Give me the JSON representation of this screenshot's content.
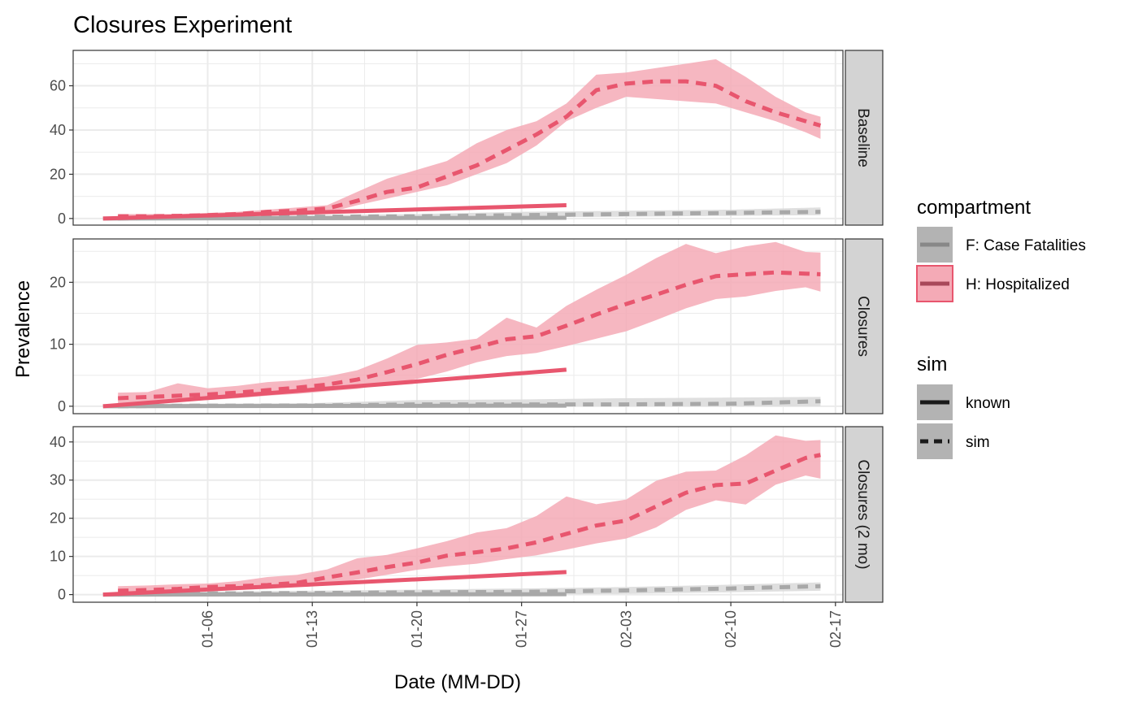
{
  "chart_data": {
    "type": "line",
    "title": "Closures Experiment",
    "xlabel": "Date (MM-DD)",
    "ylabel": "Prevalence",
    "x_ticks": [
      "01-06",
      "01-13",
      "01-20",
      "01-27",
      "02-03",
      "02-10",
      "02-17"
    ],
    "x_tick_days": [
      5,
      12,
      19,
      26,
      33,
      40,
      47
    ],
    "legend": {
      "placement": "right",
      "compartment_title": "compartment",
      "compartment_items": [
        {
          "label": "F: Case Fatalities",
          "color": "#9e9e9e"
        },
        {
          "label": "H: Hospitalized",
          "color": "#e8566e"
        }
      ],
      "sim_title": "sim",
      "sim_items": [
        {
          "label": "known",
          "linetype": "solid"
        },
        {
          "label": "sim",
          "linetype": "dashed"
        }
      ]
    },
    "colors": {
      "H": "#e8566e",
      "H_band": "#f4aab6",
      "F": "#a8a8a8",
      "F_band": "#d9d9d9",
      "strip": "#d3d3d3",
      "grid": "#ebebeb"
    },
    "panels": [
      {
        "strip": "Baseline",
        "ylim": [
          -3,
          76
        ],
        "y_ticks": [
          0,
          20,
          40,
          60
        ],
        "H_known": {
          "x": [
            -2,
            29
          ],
          "y": [
            0,
            6
          ]
        },
        "F_known": {
          "x": [
            -2,
            29
          ],
          "y": [
            0,
            0.3
          ]
        },
        "H_sim": {
          "x": [
            -1,
            1,
            3,
            5,
            7,
            9,
            11,
            13,
            15,
            17,
            19,
            21,
            23,
            25,
            27,
            29,
            31,
            33,
            35,
            37,
            39,
            41,
            43,
            45,
            46
          ],
          "y": [
            1,
            1,
            1.2,
            1.5,
            2,
            3,
            3.5,
            4.5,
            8,
            12,
            14,
            19,
            24,
            31,
            38,
            46,
            58,
            61,
            62,
            62,
            60,
            53,
            48,
            44,
            42
          ],
          "lo": [
            0,
            0,
            0.5,
            1,
            1,
            1.5,
            2,
            2.5,
            6,
            9,
            12,
            15,
            20,
            25,
            33,
            44,
            50,
            55,
            54,
            53,
            52,
            48,
            44,
            39,
            36
          ],
          "hi": [
            2,
            2,
            2,
            2.5,
            3,
            4,
            5,
            6,
            12,
            18,
            22,
            26,
            34,
            40,
            44,
            52,
            65,
            66,
            68,
            70,
            72,
            64,
            55,
            48,
            46
          ]
        },
        "F_sim": {
          "x": [
            -1,
            5,
            12,
            19,
            26,
            33,
            40,
            46
          ],
          "y": [
            0,
            0.5,
            0.8,
            1,
            1.5,
            2,
            2.5,
            3
          ],
          "lo": [
            0,
            0,
            0.2,
            0.4,
            0.6,
            0.8,
            1.2,
            1.5
          ],
          "hi": [
            0.5,
            1,
            1.5,
            2,
            3,
            3.5,
            4,
            5
          ]
        }
      },
      {
        "strip": "Closures",
        "ylim": [
          -1.2,
          27
        ],
        "y_ticks": [
          0,
          10,
          20
        ],
        "H_known": {
          "x": [
            -2,
            29
          ],
          "y": [
            0,
            5.9
          ]
        },
        "F_known": {
          "x": [
            -2,
            29
          ],
          "y": [
            0,
            0.1
          ]
        },
        "H_sim": {
          "x": [
            -1,
            1,
            3,
            5,
            7,
            9,
            11,
            13,
            15,
            17,
            19,
            21,
            23,
            25,
            27,
            29,
            31,
            33,
            35,
            37,
            39,
            41,
            43,
            45,
            46
          ],
          "y": [
            1.3,
            1.5,
            1.7,
            1.9,
            2.2,
            2.6,
            3.0,
            3.5,
            4.3,
            5.5,
            6.8,
            8.3,
            9.5,
            10.8,
            11.3,
            13,
            14.8,
            16.5,
            18,
            19.6,
            21,
            21.3,
            21.6,
            21.4,
            21.3
          ],
          "lo": [
            0.4,
            0.6,
            0.9,
            1.0,
            1.3,
            1.7,
            2.0,
            2.4,
            2.8,
            3.6,
            4.4,
            5.6,
            7.1,
            8.1,
            8.6,
            9.7,
            10.9,
            12.1,
            13.9,
            15.8,
            17.3,
            17.7,
            18.6,
            19.2,
            18.5
          ],
          "hi": [
            2.2,
            2.3,
            3.7,
            2.9,
            3.3,
            3.9,
            4.2,
            4.8,
            5.8,
            7.7,
            9.9,
            10.3,
            10.9,
            14.3,
            12.7,
            16.2,
            18.8,
            21.2,
            23.9,
            26.2,
            24.7,
            25.8,
            26.5,
            24.9,
            24.8
          ]
        },
        "F_sim": {
          "x": [
            -1,
            5,
            12,
            19,
            26,
            33,
            40,
            46
          ],
          "y": [
            0,
            0.1,
            0.1,
            0.3,
            0.3,
            0.3,
            0.4,
            0.8
          ],
          "lo": [
            0,
            0,
            0,
            0,
            0,
            0,
            0,
            0
          ],
          "hi": [
            0.4,
            0.4,
            0.5,
            1.0,
            1.1,
            1.3,
            1.4,
            1.5
          ]
        }
      },
      {
        "strip": "Closures (2 mo)",
        "ylim": [
          -2,
          44
        ],
        "y_ticks": [
          0,
          10,
          20,
          30,
          40
        ],
        "H_known": {
          "x": [
            -2,
            29
          ],
          "y": [
            0,
            5.9
          ]
        },
        "F_known": {
          "x": [
            -2,
            29
          ],
          "y": [
            0,
            0.1
          ]
        },
        "H_sim": {
          "x": [
            -1,
            1,
            3,
            5,
            7,
            9,
            11,
            13,
            15,
            17,
            19,
            21,
            23,
            25,
            27,
            29,
            31,
            33,
            35,
            37,
            39,
            41,
            43,
            45,
            46
          ],
          "y": [
            1,
            1.2,
            1.5,
            2,
            2.2,
            2.5,
            3.1,
            4.5,
            5.8,
            7.2,
            8.4,
            10.2,
            11.1,
            12.1,
            13.7,
            15.9,
            18.1,
            19.4,
            23.1,
            26.7,
            28.7,
            29.1,
            32.5,
            35.8,
            36.6
          ],
          "lo": [
            0.2,
            0.4,
            0.7,
            0.9,
            1.2,
            1.5,
            2.0,
            2.7,
            3.9,
            5.2,
            6.5,
            7.4,
            8.1,
            9.3,
            10.3,
            11.8,
            13.4,
            14.7,
            17.6,
            22.2,
            24.7,
            23.6,
            28.8,
            31.2,
            30.4
          ],
          "hi": [
            2.2,
            2.4,
            2.7,
            2.9,
            3.5,
            4.6,
            5.2,
            6.6,
            9.5,
            10.4,
            12.1,
            14.0,
            16.3,
            17.4,
            20.6,
            25.7,
            23.7,
            24.9,
            29.8,
            32.2,
            32.5,
            36.5,
            41.7,
            40.3,
            40.5
          ]
        },
        "F_sim": {
          "x": [
            -1,
            5,
            12,
            19,
            26,
            33,
            40,
            46
          ],
          "y": [
            0,
            0.3,
            0.4,
            0.6,
            0.7,
            1.1,
            1.6,
            2.2
          ],
          "lo": [
            0,
            0,
            0,
            0,
            0,
            0.2,
            0.6,
            1.0
          ],
          "hi": [
            0.5,
            0.8,
            1.0,
            1.3,
            1.6,
            2.0,
            2.6,
            3.2
          ]
        }
      }
    ]
  }
}
